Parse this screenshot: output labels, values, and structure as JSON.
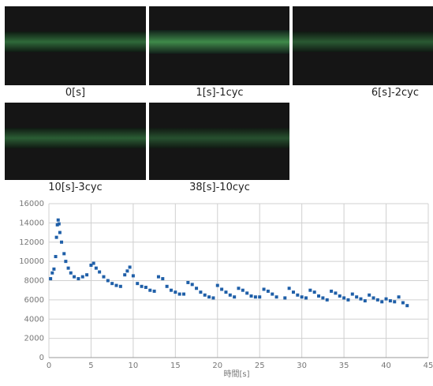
{
  "images": [
    {
      "label": "0[s]"
    },
    {
      "label": "1[s]-1cyc"
    },
    {
      "label": "6[s]-2cyc"
    },
    {
      "label": "10[s]-3cyc"
    },
    {
      "label": "38[s]-10cyc"
    }
  ],
  "chart_data": {
    "type": "scatter",
    "x_label": "時間[s]",
    "xlim": [
      0,
      45
    ],
    "xticks": [
      0,
      5,
      10,
      15,
      20,
      25,
      30,
      35,
      40,
      45
    ],
    "ylim": [
      0,
      16000
    ],
    "yticks": [
      0,
      2000,
      4000,
      6000,
      8000,
      10000,
      12000,
      14000,
      16000
    ],
    "grid": true,
    "series": [
      {
        "color": "#1f5fa8",
        "x": [
          0.2,
          0.4,
          0.6,
          0.8,
          0.9,
          1.0,
          1.1,
          1.2,
          1.3,
          1.5,
          1.8,
          2.0,
          2.3,
          2.6,
          3.0,
          3.5,
          4.0,
          4.5,
          5.0,
          5.3,
          5.6,
          6.0,
          6.5,
          7.0,
          7.5,
          8.0,
          8.5,
          9.0,
          9.3,
          9.6,
          10.0,
          10.5,
          11.0,
          11.5,
          12.0,
          12.5,
          13.0,
          13.5,
          14.0,
          14.5,
          15.0,
          15.5,
          16.0,
          16.5,
          17.0,
          17.5,
          18.0,
          18.5,
          19.0,
          19.5,
          20.0,
          20.5,
          21.0,
          21.5,
          22.0,
          22.5,
          23.0,
          23.5,
          24.0,
          24.5,
          25.0,
          25.5,
          26.0,
          26.5,
          27.0,
          28.0,
          28.5,
          29.0,
          29.5,
          30.0,
          30.5,
          31.0,
          31.5,
          32.0,
          32.5,
          33.0,
          33.5,
          34.0,
          34.5,
          35.0,
          35.5,
          36.0,
          36.5,
          37.0,
          37.5,
          38.0,
          38.5,
          39.0,
          39.5,
          40.0,
          40.5,
          41.0,
          41.5,
          42.0,
          42.5
        ],
        "values": [
          8200,
          8800,
          9200,
          10500,
          12500,
          13800,
          14300,
          13900,
          13000,
          12000,
          10800,
          10000,
          9300,
          8800,
          8400,
          8200,
          8400,
          8600,
          9600,
          9800,
          9300,
          8900,
          8400,
          8000,
          7700,
          7500,
          7400,
          8600,
          9000,
          9400,
          8500,
          7700,
          7400,
          7300,
          7000,
          6900,
          8400,
          8200,
          7400,
          7000,
          6800,
          6600,
          6600,
          7800,
          7600,
          7200,
          6800,
          6500,
          6300,
          6200,
          7500,
          7100,
          6800,
          6500,
          6300,
          7200,
          7000,
          6700,
          6400,
          6300,
          6300,
          7100,
          6900,
          6600,
          6300,
          6200,
          7200,
          6800,
          6500,
          6300,
          6200,
          7000,
          6800,
          6400,
          6200,
          6000,
          6900,
          6700,
          6400,
          6200,
          6000,
          6600,
          6300,
          6100,
          5900,
          6500,
          6200,
          6000,
          5800,
          6100,
          5900,
          5800,
          6300,
          5700,
          5400
        ]
      }
    ]
  }
}
